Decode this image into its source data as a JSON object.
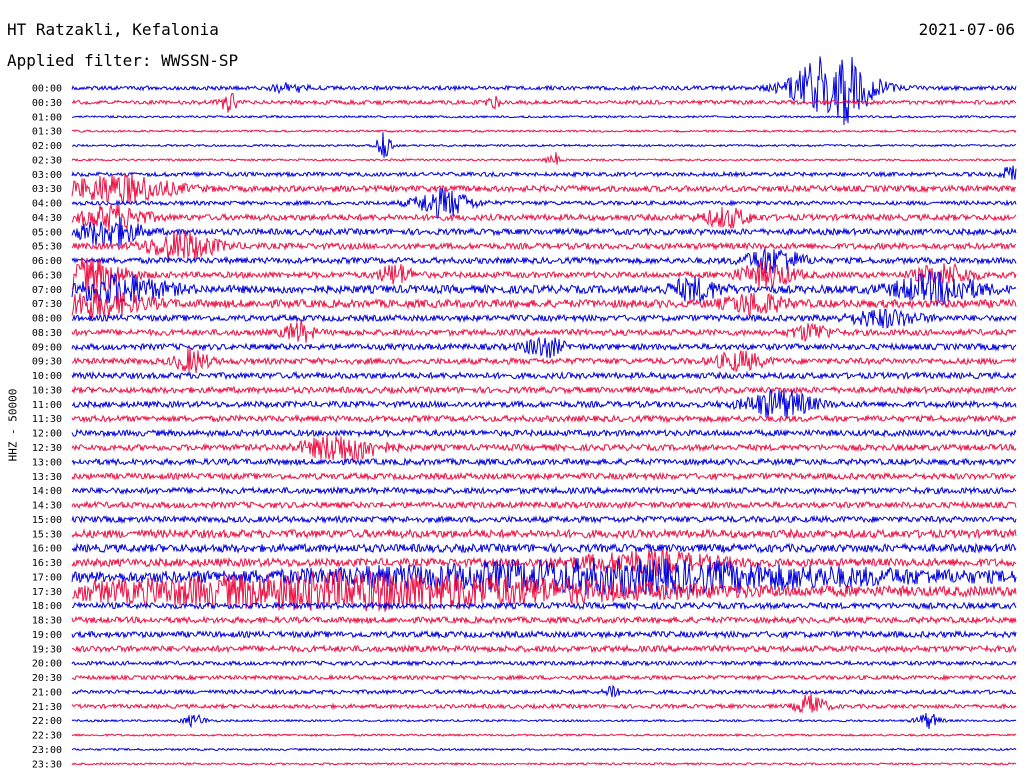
{
  "header": {
    "station": "HT Ratzakli, Kefalonia",
    "filter": "Applied filter: WWSSN-SP",
    "date": "2021-07-06"
  },
  "colors": {
    "even_trace": "#0000e0",
    "odd_trace": "#ee1144"
  },
  "chart_data": {
    "type": "line",
    "title": "HT Ratzakli, Kefalonia",
    "subtitle": "Applied filter: WWSSN-SP",
    "date": "2021-07-06",
    "ylabel": "HHZ - 50000",
    "categories": [
      "00:00",
      "00:30",
      "01:00",
      "01:30",
      "02:00",
      "02:30",
      "03:00",
      "03:30",
      "04:00",
      "04:30",
      "05:00",
      "05:30",
      "06:00",
      "06:30",
      "07:00",
      "07:30",
      "08:00",
      "08:30",
      "09:00",
      "09:30",
      "10:00",
      "10:30",
      "11:00",
      "11:30",
      "12:00",
      "12:30",
      "13:00",
      "13:30",
      "14:00",
      "14:30",
      "15:00",
      "15:30",
      "16:00",
      "16:30",
      "17:00",
      "17:30",
      "18:00",
      "18:30",
      "19:00",
      "19:30",
      "20:00",
      "20:30",
      "21:00",
      "21:30",
      "22:00",
      "22:30",
      "23:00",
      "23:30"
    ],
    "xlim": [
      0,
      30
    ],
    "grid": false,
    "legend": "none",
    "noise_level": [
      2,
      2,
      1,
      1,
      1,
      1,
      2,
      3,
      2,
      3,
      3,
      3,
      3,
      3,
      4,
      4,
      3,
      3,
      3,
      3,
      3,
      3,
      3,
      3,
      3,
      3,
      3,
      3,
      3,
      3,
      3,
      4,
      4,
      4,
      5,
      5,
      3,
      3,
      3,
      3,
      2,
      2,
      2,
      2,
      1,
      1,
      1,
      1
    ],
    "events": [
      {
        "row": 0,
        "t": 6.9,
        "amp": 4,
        "dur": 0.8
      },
      {
        "row": 0,
        "t": 24.2,
        "amp": 40,
        "dur": 1.6
      },
      {
        "row": 1,
        "t": 5.0,
        "amp": 9,
        "dur": 0.4
      },
      {
        "row": 1,
        "t": 13.4,
        "amp": 6,
        "dur": 0.3
      },
      {
        "row": 4,
        "t": 9.9,
        "amp": 13,
        "dur": 0.3
      },
      {
        "row": 5,
        "t": 15.3,
        "amp": 8,
        "dur": 0.3
      },
      {
        "row": 6,
        "t": 29.8,
        "amp": 9,
        "dur": 0.3
      },
      {
        "row": 7,
        "t": 1.5,
        "amp": 14,
        "dur": 2.2
      },
      {
        "row": 8,
        "t": 11.8,
        "amp": 14,
        "dur": 1.2
      },
      {
        "row": 9,
        "t": 1.3,
        "amp": 12,
        "dur": 1.4
      },
      {
        "row": 9,
        "t": 20.8,
        "amp": 9,
        "dur": 1.0
      },
      {
        "row": 10,
        "t": 1.2,
        "amp": 14,
        "dur": 1.3
      },
      {
        "row": 11,
        "t": 3.5,
        "amp": 14,
        "dur": 1.5
      },
      {
        "row": 12,
        "t": 22.3,
        "amp": 12,
        "dur": 1.2
      },
      {
        "row": 13,
        "t": 0.6,
        "amp": 16,
        "dur": 1.5
      },
      {
        "row": 13,
        "t": 10.3,
        "amp": 10,
        "dur": 0.7
      },
      {
        "row": 13,
        "t": 22.1,
        "amp": 12,
        "dur": 1.2
      },
      {
        "row": 13,
        "t": 27.7,
        "amp": 10,
        "dur": 1.2
      },
      {
        "row": 14,
        "t": 1.5,
        "amp": 14,
        "dur": 2.0
      },
      {
        "row": 14,
        "t": 19.8,
        "amp": 10,
        "dur": 1.1
      },
      {
        "row": 14,
        "t": 27.5,
        "amp": 14,
        "dur": 1.8
      },
      {
        "row": 15,
        "t": 0.8,
        "amp": 12,
        "dur": 2.0
      },
      {
        "row": 15,
        "t": 21.7,
        "amp": 10,
        "dur": 1.2
      },
      {
        "row": 16,
        "t": 25.8,
        "amp": 8,
        "dur": 1.5
      },
      {
        "row": 17,
        "t": 7.2,
        "amp": 10,
        "dur": 0.6
      },
      {
        "row": 17,
        "t": 23.5,
        "amp": 8,
        "dur": 0.8
      },
      {
        "row": 18,
        "t": 15.0,
        "amp": 10,
        "dur": 0.8
      },
      {
        "row": 19,
        "t": 3.8,
        "amp": 11,
        "dur": 0.7
      },
      {
        "row": 19,
        "t": 21.2,
        "amp": 9,
        "dur": 1.0
      },
      {
        "row": 22,
        "t": 22.5,
        "amp": 14,
        "dur": 1.4
      },
      {
        "row": 25,
        "t": 8.6,
        "amp": 14,
        "dur": 1.6
      },
      {
        "row": 33,
        "t": 18.2,
        "amp": 10,
        "dur": 3.0
      },
      {
        "row": 34,
        "t": 17.0,
        "amp": 14,
        "dur": 12.0
      },
      {
        "row": 35,
        "t": 9.0,
        "amp": 16,
        "dur": 12.0
      },
      {
        "row": 42,
        "t": 17.2,
        "amp": 8,
        "dur": 0.3
      },
      {
        "row": 43,
        "t": 23.5,
        "amp": 12,
        "dur": 0.6
      },
      {
        "row": 44,
        "t": 3.9,
        "amp": 6,
        "dur": 0.5
      },
      {
        "row": 44,
        "t": 27.2,
        "amp": 8,
        "dur": 0.5
      }
    ]
  }
}
